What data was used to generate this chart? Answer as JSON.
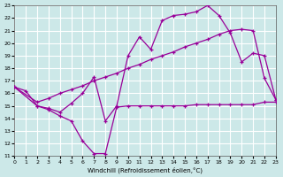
{
  "xlabel": "Windchill (Refroidissement éolien,°C)",
  "xlim": [
    0,
    23
  ],
  "ylim": [
    11,
    23
  ],
  "xticks": [
    0,
    1,
    2,
    3,
    4,
    5,
    6,
    7,
    8,
    9,
    10,
    11,
    12,
    13,
    14,
    15,
    16,
    17,
    18,
    19,
    20,
    21,
    22,
    23
  ],
  "yticks": [
    11,
    12,
    13,
    14,
    15,
    16,
    17,
    18,
    19,
    20,
    21,
    22,
    23
  ],
  "bg_color": "#cce8e8",
  "grid_color": "#ffffff",
  "line_color": "#990099",
  "series1_x": [
    0,
    1,
    2,
    3,
    4,
    5,
    6,
    7,
    8,
    9,
    10,
    11,
    12,
    13,
    14,
    15,
    16,
    17,
    18,
    19,
    20,
    21,
    22,
    23
  ],
  "series1_y": [
    16.5,
    16.2,
    15.0,
    14.7,
    14.2,
    13.8,
    12.2,
    11.2,
    11.2,
    14.9,
    15.0,
    15.0,
    15.0,
    15.0,
    15.0,
    15.0,
    15.1,
    15.1,
    15.1,
    15.1,
    15.1,
    15.1,
    15.3,
    15.3
  ],
  "series2_x": [
    0,
    2,
    3,
    4,
    5,
    6,
    7,
    8,
    9,
    10,
    11,
    12,
    13,
    14,
    15,
    16,
    17,
    18,
    19,
    20,
    21,
    22,
    23
  ],
  "series2_y": [
    16.5,
    15.0,
    14.8,
    14.5,
    15.2,
    16.0,
    17.3,
    13.8,
    15.0,
    19.0,
    20.5,
    19.5,
    21.8,
    22.2,
    22.3,
    22.5,
    23.0,
    22.2,
    20.8,
    18.5,
    19.2,
    19.0,
    15.5
  ],
  "series3_x": [
    0,
    2,
    3,
    4,
    5,
    6,
    7,
    8,
    9,
    10,
    11,
    12,
    13,
    14,
    15,
    16,
    17,
    18,
    19,
    20,
    21,
    22,
    23
  ],
  "series3_y": [
    16.5,
    15.3,
    15.6,
    16.0,
    16.3,
    16.6,
    17.0,
    17.3,
    17.6,
    18.0,
    18.3,
    18.7,
    19.0,
    19.3,
    19.7,
    20.0,
    20.3,
    20.7,
    21.0,
    21.1,
    21.0,
    17.2,
    15.5
  ]
}
